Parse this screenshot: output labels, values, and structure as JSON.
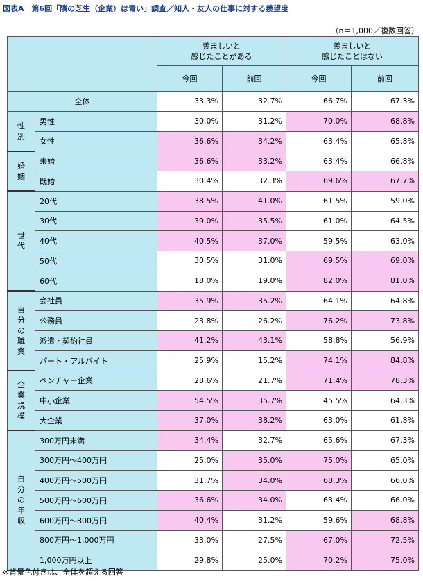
{
  "title": "図表A　第6回「隣の芝生（企業）は青い」調査／知人・友人の仕事に対する羨望度",
  "sample_note": "（n＝1,000／複数回答）",
  "header": {
    "group1": "羨ましいと\n感じたことがある",
    "group2": "羨ましいと\n感じたことはない",
    "current": "今回",
    "previous": "前回"
  },
  "total": {
    "label": "全体",
    "values": [
      "33.3%",
      "32.7%",
      "66.7%",
      "67.3%"
    ]
  },
  "groups": [
    {
      "category": "性\n別",
      "rows": [
        {
          "label": "男性",
          "values": [
            "30.0%",
            "31.2%",
            "70.0%",
            "68.8%"
          ],
          "highlight": [
            false,
            false,
            true,
            true
          ]
        },
        {
          "label": "女性",
          "values": [
            "36.6%",
            "34.2%",
            "63.4%",
            "65.8%"
          ],
          "highlight": [
            true,
            true,
            false,
            false
          ]
        }
      ]
    },
    {
      "category": "婚\n姻",
      "rows": [
        {
          "label": "未婚",
          "values": [
            "36.6%",
            "33.2%",
            "63.4%",
            "66.8%"
          ],
          "highlight": [
            true,
            true,
            false,
            false
          ]
        },
        {
          "label": "既婚",
          "values": [
            "30.4%",
            "32.3%",
            "69.6%",
            "67.7%"
          ],
          "highlight": [
            false,
            false,
            true,
            true
          ]
        }
      ]
    },
    {
      "category": "世\n代",
      "rows": [
        {
          "label": "20代",
          "values": [
            "38.5%",
            "41.0%",
            "61.5%",
            "59.0%"
          ],
          "highlight": [
            true,
            true,
            false,
            false
          ]
        },
        {
          "label": "30代",
          "values": [
            "39.0%",
            "35.5%",
            "61.0%",
            "64.5%"
          ],
          "highlight": [
            true,
            true,
            false,
            false
          ]
        },
        {
          "label": "40代",
          "values": [
            "40.5%",
            "37.0%",
            "59.5%",
            "63.0%"
          ],
          "highlight": [
            true,
            true,
            false,
            false
          ]
        },
        {
          "label": "50代",
          "values": [
            "30.5%",
            "31.0%",
            "69.5%",
            "69.0%"
          ],
          "highlight": [
            false,
            false,
            true,
            true
          ]
        },
        {
          "label": "60代",
          "values": [
            "18.0%",
            "19.0%",
            "82.0%",
            "81.0%"
          ],
          "highlight": [
            false,
            false,
            true,
            true
          ]
        }
      ]
    },
    {
      "category": "自\n分\nの\n職\n業",
      "rows": [
        {
          "label": "会社員",
          "values": [
            "35.9%",
            "35.2%",
            "64.1%",
            "64.8%"
          ],
          "highlight": [
            true,
            true,
            false,
            false
          ]
        },
        {
          "label": "公務員",
          "values": [
            "23.8%",
            "26.2%",
            "76.2%",
            "73.8%"
          ],
          "highlight": [
            false,
            false,
            true,
            true
          ]
        },
        {
          "label": "派遣・契約社員",
          "values": [
            "41.2%",
            "43.1%",
            "58.8%",
            "56.9%"
          ],
          "highlight": [
            true,
            true,
            false,
            false
          ]
        },
        {
          "label": "パート・アルバイト",
          "values": [
            "25.9%",
            "15.2%",
            "74.1%",
            "84.8%"
          ],
          "highlight": [
            false,
            false,
            true,
            true
          ]
        }
      ]
    },
    {
      "category": "企\n業\n規\n模",
      "rows": [
        {
          "label": "ベンチャー企業",
          "values": [
            "28.6%",
            "21.7%",
            "71.4%",
            "78.3%"
          ],
          "highlight": [
            false,
            false,
            true,
            true
          ]
        },
        {
          "label": "中小企業",
          "values": [
            "54.5%",
            "35.7%",
            "45.5%",
            "64.3%"
          ],
          "highlight": [
            true,
            true,
            false,
            false
          ]
        },
        {
          "label": "大企業",
          "values": [
            "37.0%",
            "38.2%",
            "63.0%",
            "61.8%"
          ],
          "highlight": [
            true,
            true,
            false,
            false
          ]
        }
      ]
    },
    {
      "category": "自\n分\nの\n年\n収",
      "rows": [
        {
          "label": "300万円未満",
          "values": [
            "34.4%",
            "32.7%",
            "65.6%",
            "67.3%"
          ],
          "highlight": [
            true,
            false,
            false,
            false
          ]
        },
        {
          "label": "300万円～400万円",
          "values": [
            "25.0%",
            "35.0%",
            "75.0%",
            "65.0%"
          ],
          "highlight": [
            false,
            true,
            true,
            false
          ]
        },
        {
          "label": "400万円～500万円",
          "values": [
            "31.7%",
            "34.0%",
            "68.3%",
            "66.0%"
          ],
          "highlight": [
            false,
            true,
            true,
            false
          ]
        },
        {
          "label": "500万円～600万円",
          "values": [
            "36.6%",
            "34.0%",
            "63.4%",
            "66.0%"
          ],
          "highlight": [
            true,
            true,
            false,
            false
          ]
        },
        {
          "label": "600万円～800万円",
          "values": [
            "40.4%",
            "31.2%",
            "59.6%",
            "68.8%"
          ],
          "highlight": [
            true,
            false,
            false,
            true
          ]
        },
        {
          "label": "800万円～1,000万円",
          "values": [
            "33.0%",
            "27.5%",
            "67.0%",
            "72.5%"
          ],
          "highlight": [
            false,
            false,
            true,
            true
          ]
        },
        {
          "label": "1,000万円以上",
          "values": [
            "29.8%",
            "25.0%",
            "70.2%",
            "75.0%"
          ],
          "highlight": [
            false,
            false,
            true,
            true
          ]
        }
      ]
    }
  ],
  "footnote": "※背景色付きは、全体を超える回答",
  "colors": {
    "header_bg": "#bfe9f2",
    "highlight_bg": "#f8c8f0",
    "title": "#1a3e8c"
  }
}
